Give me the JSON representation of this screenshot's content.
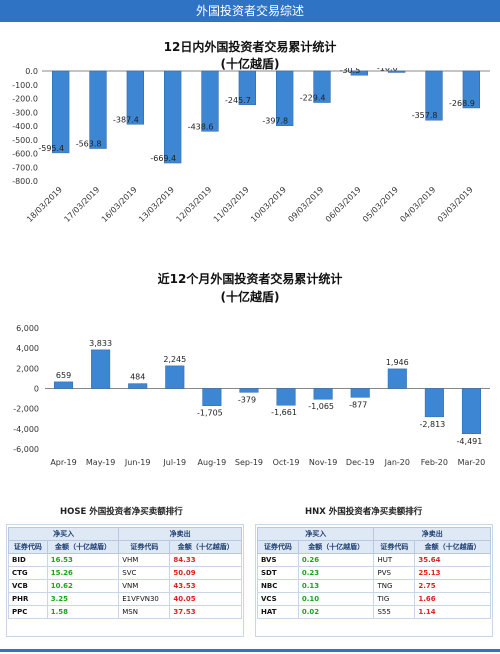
{
  "page": {
    "banner": "外国投资者交易综述"
  },
  "chart_data": [
    {
      "type": "bar",
      "title": "12日内外国投资者交易累计统计",
      "subtitle": "(十亿越盾)",
      "categories": [
        "18/03/2019",
        "17/03/2019",
        "16/03/2019",
        "13/03/2019",
        "12/03/2019",
        "11/03/2019",
        "10/03/2019",
        "09/03/2019",
        "06/03/2019",
        "05/03/2019",
        "04/03/2019",
        "03/03/2019"
      ],
      "values": [
        -595.4,
        -563.8,
        -387.4,
        -669.4,
        -438.6,
        -245.7,
        -397.8,
        -229.4,
        -30.5,
        -10.6,
        -357.8,
        -268.9
      ],
      "ylim": [
        -800,
        0
      ],
      "yticks": [
        "0.0",
        "-100.0",
        "-200.0",
        "-300.0",
        "-400.0",
        "-500.0",
        "-600.0",
        "-700.0",
        "-800.0"
      ],
      "grid": false
    },
    {
      "type": "bar",
      "title": "近12个月外国投资者交易累计统计",
      "subtitle": "(十亿越盾)",
      "categories": [
        "Apr-19",
        "May-19",
        "Jun-19",
        "Jul-19",
        "Aug-19",
        "Sep-19",
        "Oct-19",
        "Nov-19",
        "Dec-19",
        "Jan-20",
        "Feb-20",
        "Mar-20"
      ],
      "values": [
        659,
        3833,
        484,
        2245,
        -1705,
        -379,
        -1661,
        -1065,
        -877,
        1946,
        -2813,
        -4491
      ],
      "labels": [
        "659",
        "3,833",
        "484",
        "2,245",
        "-1,705",
        "-379",
        "-1,661",
        "-1,065",
        "-877",
        "1,946",
        "-2,813",
        "-4,491"
      ],
      "ylim": [
        -6000,
        6000
      ],
      "yticks": [
        "6,000",
        "4,000",
        "2,000",
        "0",
        "-2,000",
        "-4,000",
        "-6,000"
      ],
      "grid": false
    }
  ],
  "hose": {
    "title": "HOSE 外国投资者净买卖额排行",
    "buy_header": "净买入",
    "sell_header": "净卖出",
    "col_code": "证券代码",
    "col_amount": "金额（十亿越盾）",
    "rows": [
      {
        "buy_code": "BID",
        "buy_amt": "16.53",
        "sell_code": "VHM",
        "sell_amt": "84.33"
      },
      {
        "buy_code": "CTG",
        "buy_amt": "15.26",
        "sell_code": "SVC",
        "sell_amt": "50.09"
      },
      {
        "buy_code": "VCB",
        "buy_amt": "10.62",
        "sell_code": "VNM",
        "sell_amt": "43.53"
      },
      {
        "buy_code": "PHR",
        "buy_amt": "3.25",
        "sell_code": "E1VFVN30",
        "sell_amt": "40.05"
      },
      {
        "buy_code": "PPC",
        "buy_amt": "1.58",
        "sell_code": "MSN",
        "sell_amt": "37.53"
      }
    ]
  },
  "hnx": {
    "title": "HNX 外国投资者净买卖额排行",
    "buy_header": "净买入",
    "sell_header": "净卖出",
    "col_code": "证券代码",
    "col_amount": "金额（十亿越盾）",
    "rows": [
      {
        "buy_code": "BVS",
        "buy_amt": "0.26",
        "sell_code": "HUT",
        "sell_amt": "35.64"
      },
      {
        "buy_code": "SDT",
        "buy_amt": "0.23",
        "sell_code": "PVS",
        "sell_amt": "25.13"
      },
      {
        "buy_code": "NBC",
        "buy_amt": "0.13",
        "sell_code": "TNG",
        "sell_amt": "2.75"
      },
      {
        "buy_code": "VCS",
        "buy_amt": "0.10",
        "sell_code": "TIG",
        "sell_amt": "1.66"
      },
      {
        "buy_code": "HAT",
        "buy_amt": "0.02",
        "sell_code": "S55",
        "sell_amt": "1.14"
      }
    ]
  },
  "colors": {
    "bar": "#3c86d4",
    "bar_dark": "#2a64aa",
    "banner": "#2f73c4",
    "buy": "#1aa51a",
    "sell": "#e0201f"
  }
}
